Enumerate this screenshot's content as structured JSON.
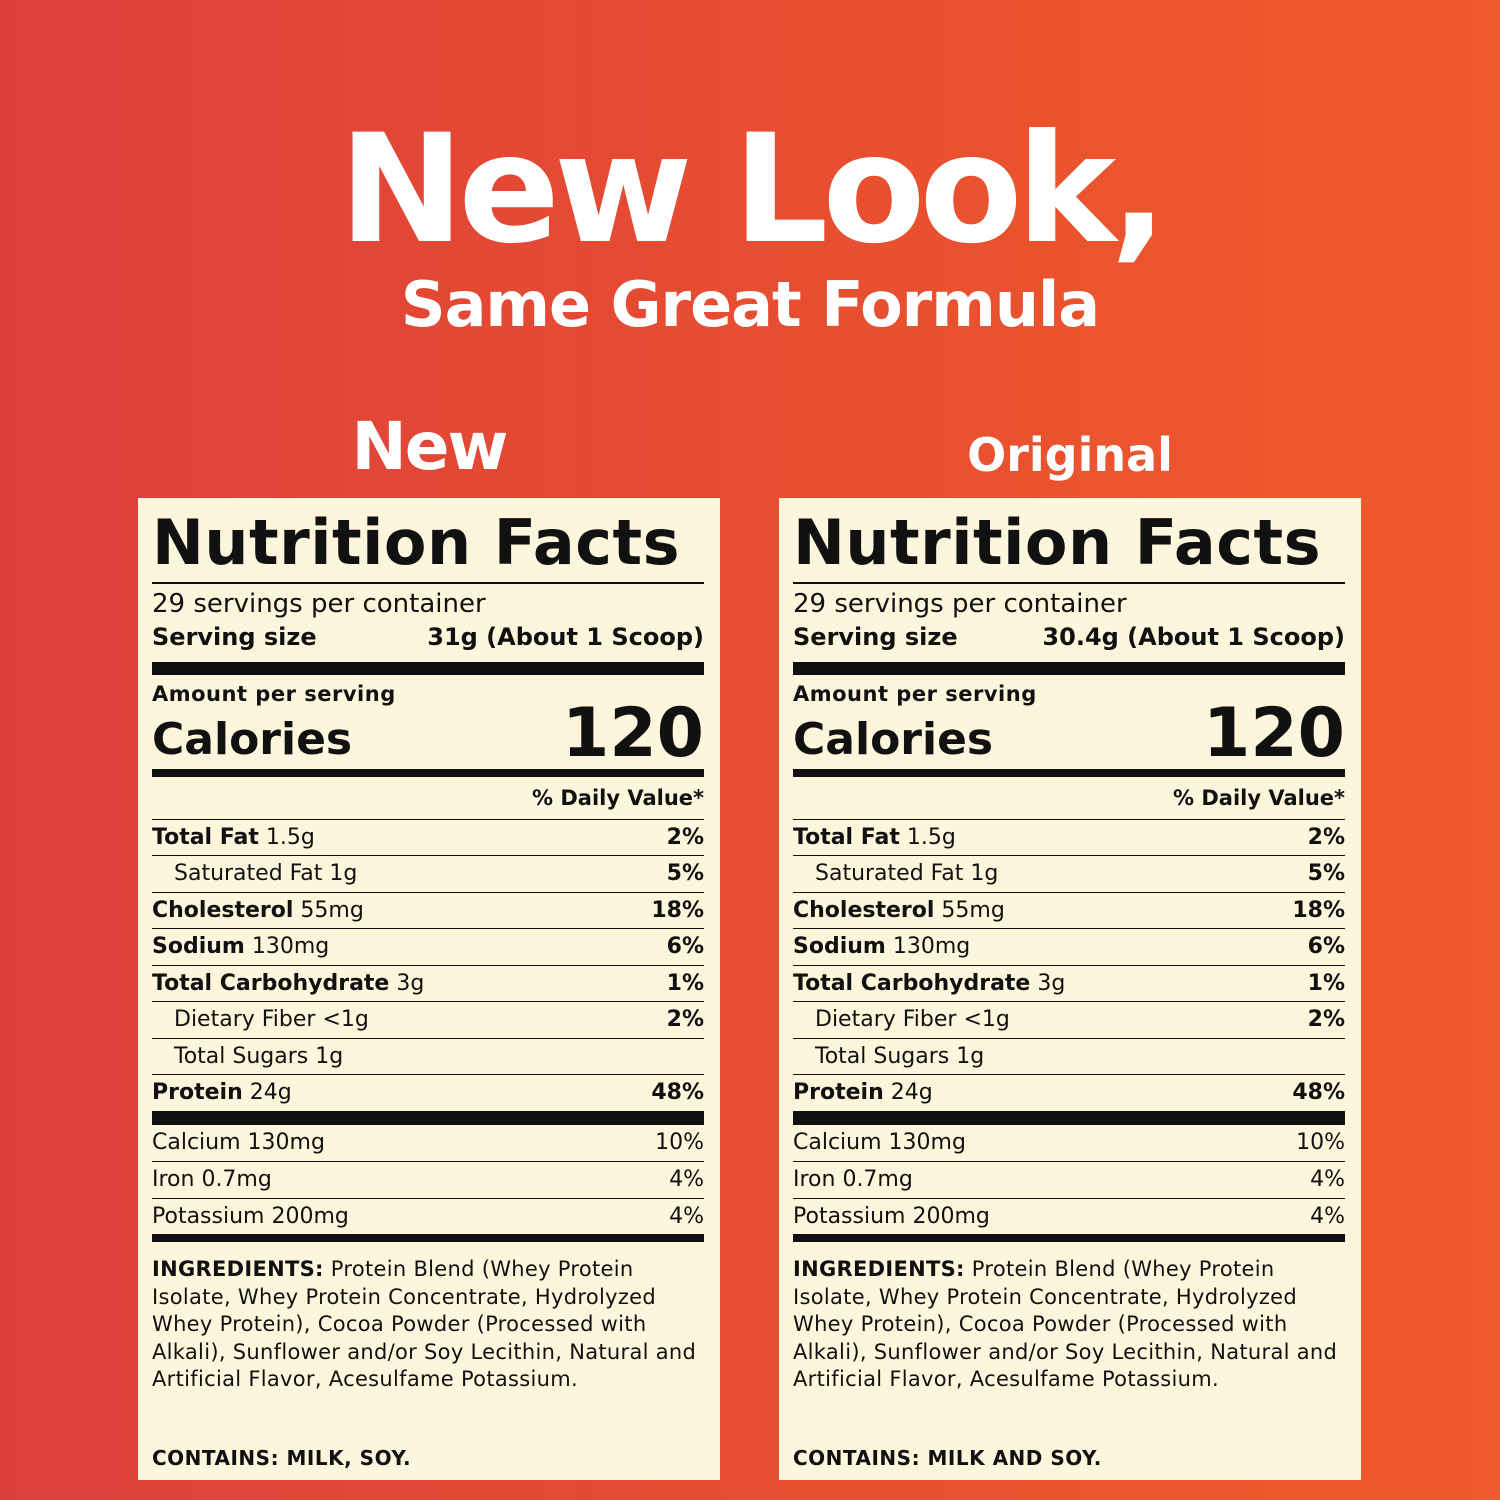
{
  "header": {
    "title": "New Look,",
    "subtitle": "Same Great Formula"
  },
  "panels": [
    {
      "label": "New",
      "facts": {
        "title": "Nutrition Facts",
        "servings": "29 servings per container",
        "serving_size_label": "Serving size",
        "serving_size": "31g (About 1 Scoop)",
        "amount_label": "Amount per serving",
        "calories_label": "Calories",
        "calories": "120",
        "dv_header": "% Daily Value*",
        "nutrients": [
          {
            "name": "Total Fat",
            "amount": "1.5g",
            "dv": "2%",
            "indented": false
          },
          {
            "name": "Saturated Fat",
            "amount": "1g",
            "dv": "5%",
            "indented": true
          },
          {
            "name": "Cholesterol",
            "amount": "55mg",
            "dv": "18%",
            "indented": false
          },
          {
            "name": "Sodium",
            "amount": "130mg",
            "dv": "6%",
            "indented": false
          },
          {
            "name": "Total Carbohydrate",
            "amount": "3g",
            "dv": "1%",
            "indented": false
          },
          {
            "name": "Dietary Fiber",
            "amount": "<1g",
            "dv": "2%",
            "indented": true
          },
          {
            "name": "Total Sugars",
            "amount": "1g",
            "indented": true
          },
          {
            "name": "Protein",
            "amount": "24g",
            "dv": "48%",
            "indented": false
          }
        ],
        "minerals": [
          {
            "name": "Calcium 130mg",
            "dv": "10%"
          },
          {
            "name": "Iron 0.7mg",
            "dv": "4%"
          },
          {
            "name": "Potassium 200mg",
            "dv": "4%"
          }
        ],
        "ingredients_label": "INGREDIENTS:",
        "ingredients": "Protein Blend (Whey Protein Isolate, Whey Protein Concentrate, Hydrolyzed Whey Protein), Cocoa Powder (Processed with Alkali), Sunflower and/or Soy Lecithin, Natural and Artificial Flavor, Acesulfame Potassium.",
        "contains": "CONTAINS: MILK, SOY."
      }
    },
    {
      "label": "Original",
      "facts": {
        "title": "Nutrition Facts",
        "servings": "29 servings per container",
        "serving_size_label": "Serving size",
        "serving_size": "30.4g (About 1 Scoop)",
        "amount_label": "Amount per serving",
        "calories_label": "Calories",
        "calories": "120",
        "dv_header": "% Daily Value*",
        "nutrients": [
          {
            "name": "Total Fat",
            "amount": "1.5g",
            "dv": "2%",
            "indented": false
          },
          {
            "name": "Saturated Fat",
            "amount": "1g",
            "dv": "5%",
            "indented": true
          },
          {
            "name": "Cholesterol",
            "amount": "55mg",
            "dv": "18%",
            "indented": false
          },
          {
            "name": "Sodium",
            "amount": "130mg",
            "dv": "6%",
            "indented": false
          },
          {
            "name": "Total Carbohydrate",
            "amount": "3g",
            "dv": "1%",
            "indented": false
          },
          {
            "name": "Dietary Fiber",
            "amount": "<1g",
            "dv": "2%",
            "indented": true
          },
          {
            "name": "Total Sugars",
            "amount": "1g",
            "indented": true
          },
          {
            "name": "Protein",
            "amount": "24g",
            "dv": "48%",
            "indented": false
          }
        ],
        "minerals": [
          {
            "name": "Calcium 130mg",
            "dv": "10%"
          },
          {
            "name": "Iron 0.7mg",
            "dv": "4%"
          },
          {
            "name": "Potassium 200mg",
            "dv": "4%"
          }
        ],
        "ingredients_label": "INGREDIENTS:",
        "ingredients": "Protein Blend (Whey Protein Isolate, Whey Protein Concentrate, Hydrolyzed Whey Protein), Cocoa Powder (Processed with Alkali), Sunflower and/or Soy Lecithin, Natural and Artificial Flavor, Acesulfame Potassium.",
        "contains": "CONTAINS: MILK AND SOY."
      }
    }
  ]
}
